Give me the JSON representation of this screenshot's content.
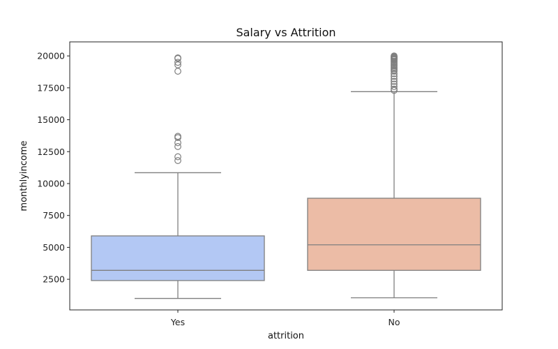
{
  "chart_data": {
    "type": "box",
    "title": "Salary vs Attrition",
    "xlabel": "attrition",
    "ylabel": "monthlyincome",
    "categories": [
      "Yes",
      "No"
    ],
    "ylim": [
      100,
      21100
    ],
    "yticks": [
      2500,
      5000,
      7500,
      10000,
      12500,
      15000,
      17500,
      20000
    ],
    "ytick_labels": [
      "2500",
      "5000",
      "7500",
      "10000",
      "12500",
      "15000",
      "17500",
      "20000"
    ],
    "grid": false,
    "series": [
      {
        "category": "Yes",
        "color": "#b3c8f4",
        "whisker_low": 1000,
        "q1": 2400,
        "median": 3200,
        "q3": 5900,
        "whisker_high": 10850,
        "outliers": [
          11800,
          12100,
          12900,
          13200,
          13600,
          13700,
          18800,
          19300,
          19500,
          19800,
          19850
        ]
      },
      {
        "category": "No",
        "color": "#ecbca6",
        "whisker_low": 1050,
        "q1": 3200,
        "median": 5200,
        "q3": 8850,
        "whisker_high": 17200,
        "outliers": [
          17300,
          17400,
          17600,
          17800,
          18000,
          18200,
          18400,
          18600,
          18800,
          18900,
          19000,
          19100,
          19200,
          19300,
          19400,
          19500,
          19600,
          19700,
          19750,
          19800,
          19850,
          19900,
          19950,
          20000
        ]
      }
    ],
    "line_color": "#7f7f7f"
  }
}
